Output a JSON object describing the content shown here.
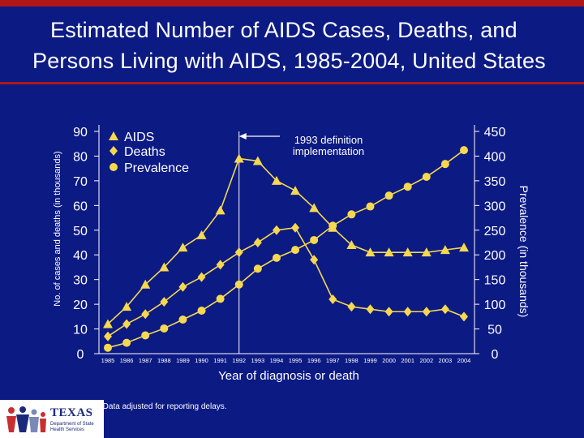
{
  "slide": {
    "title_line1": "Estimated Number of AIDS Cases, Deaths, and",
    "title_line2": "Persons Living with AIDS, 1985-2004, United States",
    "note": "Note. Data adjusted for reporting delays.",
    "logo_word": "TEXAS",
    "logo_subtext": "Department of State Health Services",
    "colors": {
      "background": "#0c1a84",
      "accent_red": "#b01818",
      "series": "#f5d850",
      "grid_lines": "#ffffff"
    }
  },
  "chart_data": {
    "type": "line",
    "title": "Estimated Number of AIDS Cases, Deaths, and Persons Living with AIDS, 1985-2004, United States",
    "xlabel": "Year of diagnosis or death",
    "ylabel_left": "No. of cases and deaths (in thousands)",
    "ylabel_right": "Prevalence (in thousands)",
    "categories": [
      "1985",
      "1986",
      "1987",
      "1988",
      "1989",
      "1990",
      "1991",
      "1992",
      "1993",
      "1994",
      "1995",
      "1996",
      "1997",
      "1998",
      "1999",
      "2000",
      "2001",
      "2002",
      "2003",
      "2004"
    ],
    "y_left_ticks": [
      0,
      10,
      20,
      30,
      40,
      50,
      60,
      70,
      80,
      90
    ],
    "y_right_ticks": [
      0,
      50,
      100,
      150,
      200,
      250,
      300,
      350,
      400,
      450
    ],
    "ylim_left": [
      0,
      90
    ],
    "ylim_right": [
      0,
      450
    ],
    "legend_placement": "top-left",
    "series": [
      {
        "name": "AIDS",
        "marker": "triangle",
        "axis": "left",
        "values": [
          12,
          19,
          28,
          35,
          43,
          48,
          58,
          79,
          78,
          70,
          66,
          59,
          51,
          44,
          41,
          41,
          41,
          41,
          42,
          43
        ]
      },
      {
        "name": "Deaths",
        "marker": "diamond",
        "axis": "left",
        "values": [
          7,
          12,
          16,
          21,
          27,
          31,
          36,
          41,
          45,
          50,
          51,
          38,
          22,
          19,
          18,
          17,
          17,
          17,
          18,
          15
        ]
      },
      {
        "name": "Prevalence",
        "marker": "circle",
        "axis": "right",
        "values": [
          12,
          22,
          37,
          51,
          69,
          87,
          111,
          140,
          172,
          194,
          210,
          230,
          259,
          282,
          298,
          320,
          338,
          358,
          384,
          412
        ]
      }
    ],
    "annotations": [
      {
        "text_line1": "1993 definition",
        "text_line2": "implementation",
        "at_category": "1992"
      }
    ]
  }
}
